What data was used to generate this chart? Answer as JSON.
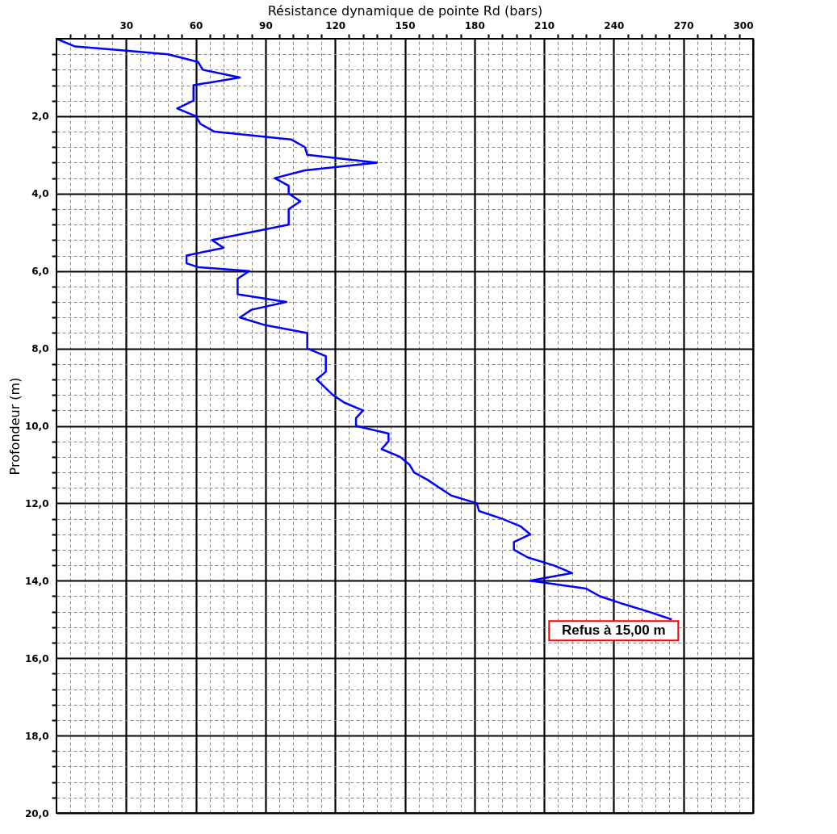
{
  "chart_data": {
    "type": "line",
    "orientation": "horizontal",
    "xlabel": "Résistance dynamique de pointe Rd (bars)",
    "ylabel": "Profondeur (m)",
    "xlim": [
      0,
      300
    ],
    "ylim": [
      20,
      0
    ],
    "xticks": [
      {
        "value": 6,
        "label": null
      },
      {
        "value": 12,
        "label": null
      },
      {
        "value": 18,
        "label": null
      },
      {
        "value": 24,
        "label": null
      },
      30,
      {
        "value": 36,
        "label": null
      },
      {
        "value": 42,
        "label": null
      },
      {
        "value": 48,
        "label": null
      },
      {
        "value": 54,
        "label": null
      },
      60,
      {
        "value": 66,
        "label": null
      },
      {
        "value": 72,
        "label": null
      },
      {
        "value": 78,
        "label": null
      },
      {
        "value": 84,
        "label": null
      },
      90,
      {
        "value": 96,
        "label": null
      },
      {
        "value": 102,
        "label": null
      },
      {
        "value": 108,
        "label": null
      },
      {
        "value": 114,
        "label": null
      },
      120,
      {
        "value": 126,
        "label": null
      },
      {
        "value": 132,
        "label": null
      },
      {
        "value": 138,
        "label": null
      },
      {
        "value": 144,
        "label": null
      },
      150,
      {
        "value": 156,
        "label": null
      },
      {
        "value": 162,
        "label": null
      },
      {
        "value": 168,
        "label": null
      },
      {
        "value": 174,
        "label": null
      },
      180,
      {
        "value": 186,
        "label": null
      },
      {
        "value": 192,
        "label": null
      },
      {
        "value": 198,
        "label": null
      },
      {
        "value": 204,
        "label": null
      },
      210,
      {
        "value": 216,
        "label": null
      },
      {
        "value": 222,
        "label": null
      },
      {
        "value": 228,
        "label": null
      },
      {
        "value": 234,
        "label": null
      },
      240,
      {
        "value": 246,
        "label": null
      },
      {
        "value": 252,
        "label": null
      },
      {
        "value": 258,
        "label": null
      },
      {
        "value": 264,
        "label": null
      },
      270,
      {
        "value": 276,
        "label": null
      },
      {
        "value": 282,
        "label": null
      },
      {
        "value": 288,
        "label": null
      },
      {
        "value": 294,
        "label": null
      },
      300
    ],
    "yticks": [
      {
        "value": 0.4,
        "label": null
      },
      {
        "value": 0.8,
        "label": null
      },
      {
        "value": 1.2,
        "label": null
      },
      {
        "value": 1.6,
        "label": null
      },
      {
        "value": 2,
        "label": "2,0"
      },
      {
        "value": 2.4,
        "label": null
      },
      {
        "value": 2.8,
        "label": null
      },
      {
        "value": 3.2,
        "label": null
      },
      {
        "value": 3.6,
        "label": null
      },
      {
        "value": 4,
        "label": "4,0"
      },
      {
        "value": 4.4,
        "label": null
      },
      {
        "value": 4.8,
        "label": null
      },
      {
        "value": 5.2,
        "label": null
      },
      {
        "value": 5.6,
        "label": null
      },
      {
        "value": 6,
        "label": "6,0"
      },
      {
        "value": 6.4,
        "label": null
      },
      {
        "value": 6.8,
        "label": null
      },
      {
        "value": 7.2,
        "label": null
      },
      {
        "value": 7.6,
        "label": null
      },
      {
        "value": 8,
        "label": "8,0"
      },
      {
        "value": 8.4,
        "label": null
      },
      {
        "value": 8.8,
        "label": null
      },
      {
        "value": 9.2,
        "label": null
      },
      {
        "value": 9.6,
        "label": null
      },
      {
        "value": 10,
        "label": "10,0"
      },
      {
        "value": 10.4,
        "label": null
      },
      {
        "value": 10.8,
        "label": null
      },
      {
        "value": 11.2,
        "label": null
      },
      {
        "value": 11.6,
        "label": null
      },
      {
        "value": 12,
        "label": "12,0"
      },
      {
        "value": 12.4,
        "label": null
      },
      {
        "value": 12.8,
        "label": null
      },
      {
        "value": 13.2,
        "label": null
      },
      {
        "value": 13.6,
        "label": null
      },
      {
        "value": 14,
        "label": "14,0"
      },
      {
        "value": 14.4,
        "label": null
      },
      {
        "value": 14.8,
        "label": null
      },
      {
        "value": 15.2,
        "label": null
      },
      {
        "value": 15.6,
        "label": null
      },
      {
        "value": 16,
        "label": "16,0"
      },
      {
        "value": 16.4,
        "label": null
      },
      {
        "value": 16.8,
        "label": null
      },
      {
        "value": 17.2,
        "label": null
      },
      {
        "value": 17.6,
        "label": null
      },
      {
        "value": 18,
        "label": "18,0"
      },
      {
        "value": 18.4,
        "label": null
      },
      {
        "value": 18.8,
        "label": null
      },
      {
        "value": 19.2,
        "label": null
      },
      {
        "value": 19.6,
        "label": null
      },
      {
        "value": 20,
        "label": "20,0"
      }
    ],
    "grid": true,
    "marker": "none",
    "line_style": "solid",
    "series": [
      {
        "color": "#0000ff",
        "x": [
          0,
          0.2,
          0.3,
          0.4,
          0.6,
          0.8,
          1.0,
          1.2,
          1.6,
          1.8,
          2.0,
          2.2,
          2.4,
          2.6,
          2.8,
          3.0,
          3.2,
          3.4,
          3.6,
          3.8,
          4.0,
          4.2,
          4.4,
          4.8,
          5.2,
          5.4,
          5.6,
          5.8,
          5.9,
          6.0,
          6.2,
          6.6,
          6.8,
          7.0,
          7.2,
          7.4,
          7.6,
          8.0,
          8.2,
          8.6,
          8.8,
          9.2,
          9.4,
          9.6,
          9.8,
          10.0,
          10.2,
          10.4,
          10.6,
          10.8,
          11.0,
          11.2,
          11.4,
          11.6,
          11.8,
          12.0,
          12.2,
          12.4,
          12.6,
          12.8,
          13.0,
          13.2,
          13.4,
          13.6,
          13.8,
          14.0,
          14.2,
          14.4,
          14.6,
          14.8,
          15.0
        ],
        "values": [
          0,
          8,
          29,
          48,
          61,
          63,
          79,
          59,
          59,
          52,
          60,
          62,
          68,
          101,
          107,
          108,
          138,
          107,
          94,
          100,
          100,
          105,
          100,
          100,
          67,
          72,
          56,
          56,
          61,
          83,
          78,
          78,
          99,
          84,
          79,
          90,
          108,
          108,
          116,
          116,
          112,
          119,
          124,
          132,
          129,
          129,
          143,
          143,
          140,
          148,
          152,
          154,
          160,
          165,
          170,
          181,
          182,
          192,
          200,
          204,
          197,
          197,
          203,
          214,
          222,
          204,
          228,
          234,
          244,
          255,
          265
        ]
      }
    ],
    "annotations": [
      {
        "text": "Refus à 15,00 m",
        "x": 265,
        "y": 15
      }
    ]
  }
}
